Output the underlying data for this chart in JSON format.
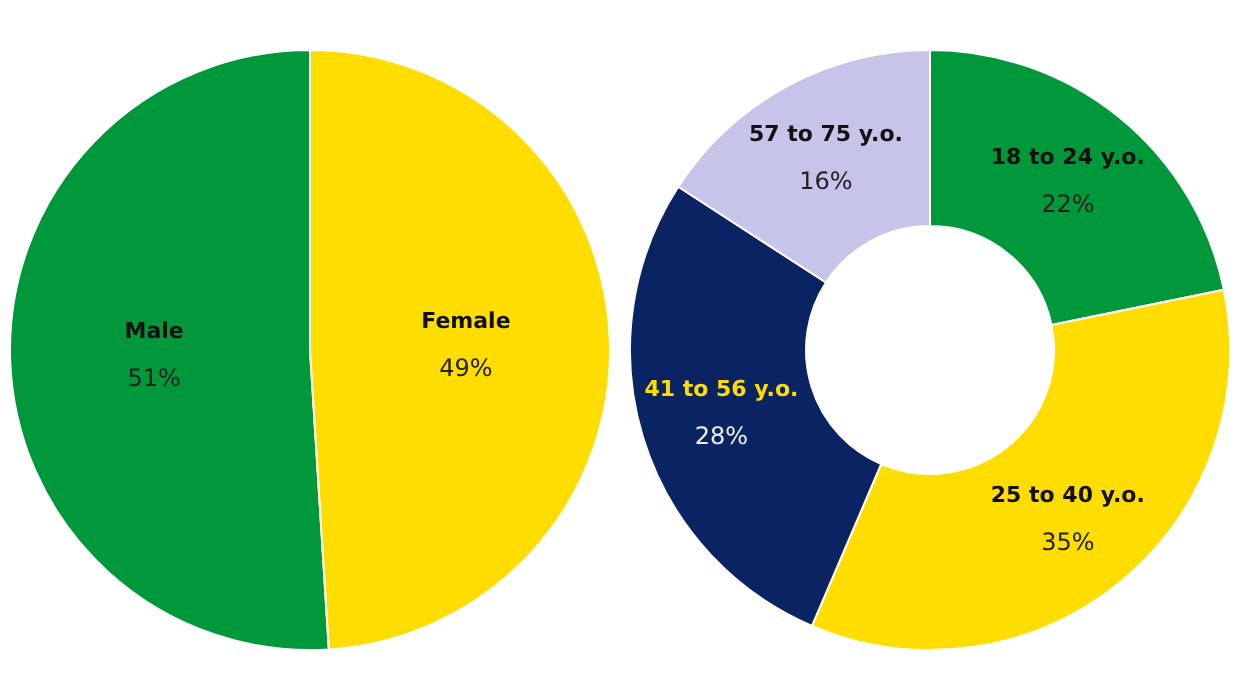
{
  "chart_data": [
    {
      "type": "pie",
      "categories": [
        "Male",
        "Female"
      ],
      "values": [
        51,
        49
      ],
      "value_labels": [
        "51%",
        "49%"
      ],
      "colors": [
        "#00983a",
        "#ffdd00"
      ]
    },
    {
      "type": "donut",
      "categories": [
        "18 to 24 y.o.",
        "25 to 40 y.o.",
        "41 to 56 y.o.",
        "57 to 75 y.o."
      ],
      "values": [
        22,
        35,
        28,
        16
      ],
      "value_labels": [
        "22%",
        "35%",
        "28%",
        "16%"
      ],
      "colors": [
        "#00983a",
        "#ffdd00",
        "#0a2463",
        "#c7c4ea"
      ]
    }
  ]
}
